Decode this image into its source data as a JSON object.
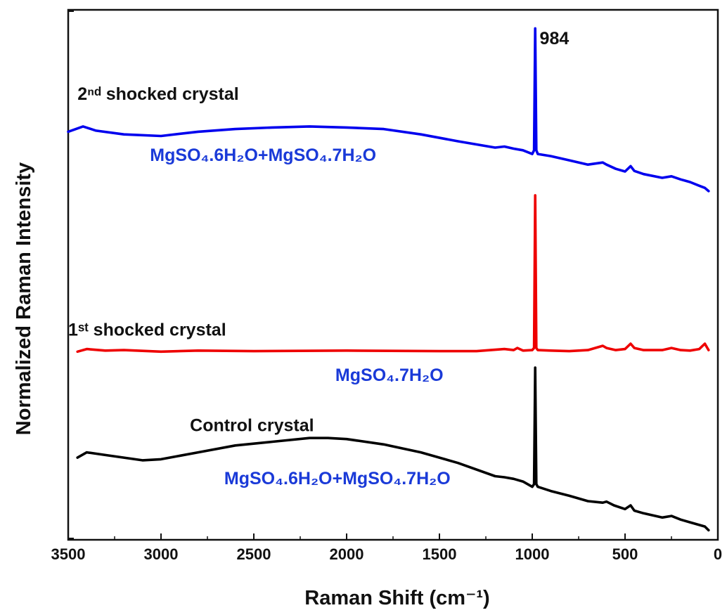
{
  "chart_data": {
    "type": "line",
    "xlabel": "Raman Shift (cm⁻¹)",
    "ylabel": "Normalized Raman Intensity",
    "xlim": [
      3500,
      0
    ],
    "x_reversed": true,
    "xticks": [
      3500,
      3000,
      2500,
      2000,
      1500,
      1000,
      500,
      0
    ],
    "ylim": [
      0,
      1
    ],
    "y_ticks_labeled": false,
    "grid": false,
    "legend": "none",
    "peak_label": "984",
    "series": [
      {
        "name": "Control crystal",
        "color": "#000000",
        "points": [
          [
            3450,
            0.155
          ],
          [
            3400,
            0.165
          ],
          [
            3300,
            0.16
          ],
          [
            3200,
            0.155
          ],
          [
            3100,
            0.15
          ],
          [
            3000,
            0.152
          ],
          [
            2800,
            0.165
          ],
          [
            2600,
            0.178
          ],
          [
            2400,
            0.185
          ],
          [
            2200,
            0.192
          ],
          [
            2100,
            0.192
          ],
          [
            2000,
            0.19
          ],
          [
            1800,
            0.18
          ],
          [
            1600,
            0.165
          ],
          [
            1400,
            0.145
          ],
          [
            1200,
            0.12
          ],
          [
            1150,
            0.118
          ],
          [
            1100,
            0.115
          ],
          [
            1050,
            0.11
          ],
          [
            1000,
            0.1
          ],
          [
            990,
            0.105
          ],
          [
            984,
            0.325
          ],
          [
            978,
            0.105
          ],
          [
            970,
            0.1
          ],
          [
            900,
            0.092
          ],
          [
            800,
            0.083
          ],
          [
            700,
            0.073
          ],
          [
            620,
            0.07
          ],
          [
            600,
            0.072
          ],
          [
            560,
            0.065
          ],
          [
            500,
            0.058
          ],
          [
            470,
            0.065
          ],
          [
            450,
            0.055
          ],
          [
            400,
            0.05
          ],
          [
            300,
            0.042
          ],
          [
            250,
            0.045
          ],
          [
            200,
            0.038
          ],
          [
            150,
            0.033
          ],
          [
            100,
            0.028
          ],
          [
            70,
            0.025
          ],
          [
            50,
            0.018
          ]
        ]
      },
      {
        "name": "1st shocked crystal",
        "color": "#ee0000",
        "points": [
          [
            3450,
            0.355
          ],
          [
            3400,
            0.36
          ],
          [
            3300,
            0.357
          ],
          [
            3200,
            0.358
          ],
          [
            3000,
            0.355
          ],
          [
            2800,
            0.357
          ],
          [
            2500,
            0.356
          ],
          [
            2000,
            0.357
          ],
          [
            1500,
            0.356
          ],
          [
            1300,
            0.356
          ],
          [
            1150,
            0.36
          ],
          [
            1100,
            0.358
          ],
          [
            1080,
            0.362
          ],
          [
            1050,
            0.357
          ],
          [
            1000,
            0.358
          ],
          [
            990,
            0.362
          ],
          [
            984,
            0.65
          ],
          [
            978,
            0.362
          ],
          [
            970,
            0.358
          ],
          [
            900,
            0.357
          ],
          [
            800,
            0.356
          ],
          [
            700,
            0.358
          ],
          [
            620,
            0.366
          ],
          [
            600,
            0.362
          ],
          [
            550,
            0.358
          ],
          [
            500,
            0.36
          ],
          [
            470,
            0.37
          ],
          [
            450,
            0.362
          ],
          [
            400,
            0.358
          ],
          [
            300,
            0.358
          ],
          [
            250,
            0.362
          ],
          [
            200,
            0.358
          ],
          [
            150,
            0.357
          ],
          [
            100,
            0.36
          ],
          [
            70,
            0.37
          ],
          [
            50,
            0.358
          ]
        ]
      },
      {
        "name": "2nd shocked crystal",
        "color": "#0000ee",
        "points": [
          [
            3500,
            0.77
          ],
          [
            3420,
            0.78
          ],
          [
            3350,
            0.772
          ],
          [
            3200,
            0.765
          ],
          [
            3000,
            0.762
          ],
          [
            2800,
            0.77
          ],
          [
            2600,
            0.775
          ],
          [
            2400,
            0.778
          ],
          [
            2200,
            0.78
          ],
          [
            2000,
            0.778
          ],
          [
            1800,
            0.775
          ],
          [
            1600,
            0.765
          ],
          [
            1400,
            0.752
          ],
          [
            1200,
            0.74
          ],
          [
            1150,
            0.742
          ],
          [
            1100,
            0.738
          ],
          [
            1050,
            0.735
          ],
          [
            1000,
            0.728
          ],
          [
            990,
            0.735
          ],
          [
            984,
            0.965
          ],
          [
            978,
            0.735
          ],
          [
            970,
            0.728
          ],
          [
            900,
            0.724
          ],
          [
            800,
            0.716
          ],
          [
            700,
            0.708
          ],
          [
            620,
            0.712
          ],
          [
            600,
            0.708
          ],
          [
            550,
            0.7
          ],
          [
            500,
            0.695
          ],
          [
            470,
            0.705
          ],
          [
            450,
            0.696
          ],
          [
            400,
            0.69
          ],
          [
            300,
            0.683
          ],
          [
            250,
            0.686
          ],
          [
            200,
            0.68
          ],
          [
            150,
            0.675
          ],
          [
            100,
            0.668
          ],
          [
            70,
            0.664
          ],
          [
            50,
            0.658
          ]
        ]
      }
    ],
    "annotations": [
      {
        "id": "ctrl-label",
        "text": "Control crystal",
        "x": 2510,
        "y": 0.205,
        "color": "#111111",
        "anchor": "middle"
      },
      {
        "id": "ctrl-formula",
        "text": "MgSO₄.6H₂O+MgSO₄.7H₂O",
        "x": 2050,
        "y": 0.105,
        "color": "#1a3ad8",
        "anchor": "middle"
      },
      {
        "id": "s1-label",
        "text": "1ˢᵗ shocked crystal",
        "x": 3500,
        "y": 0.385,
        "color": "#111111",
        "anchor": "start"
      },
      {
        "id": "s1-formula",
        "text": "MgSO₄.7H₂O",
        "x": 1770,
        "y": 0.3,
        "color": "#1a3ad8",
        "anchor": "middle"
      },
      {
        "id": "s2-label",
        "text": "2ⁿᵈ shocked crystal",
        "x": 3450,
        "y": 0.83,
        "color": "#111111",
        "anchor": "start"
      },
      {
        "id": "s2-formula",
        "text": "MgSO₄.6H₂O+MgSO₄.7H₂O",
        "x": 2450,
        "y": 0.715,
        "color": "#1a3ad8",
        "anchor": "middle"
      },
      {
        "id": "peak-label",
        "text": "984",
        "x": 960,
        "y": 0.935,
        "color": "#111111",
        "anchor": "start"
      }
    ]
  }
}
